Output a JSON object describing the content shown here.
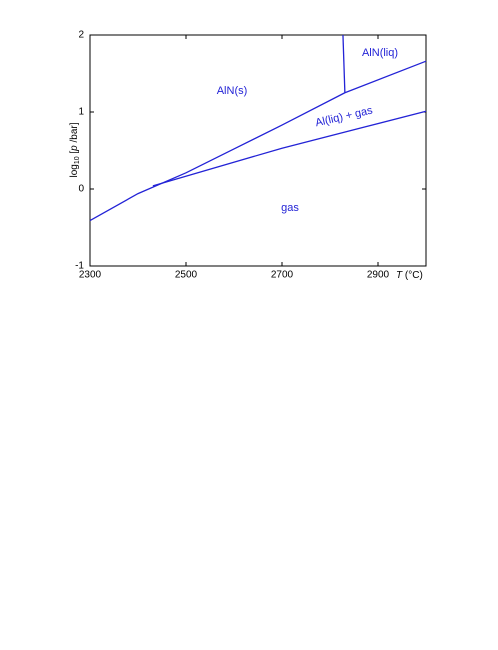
{
  "chart_data": {
    "type": "line",
    "ylabel": [
      "log",
      "10",
      " [",
      "p",
      " /bar]"
    ],
    "xlabel": [
      "T",
      " (°C)"
    ],
    "series": [
      {
        "color": "#2323d6",
        "x": [
          2300,
          2400,
          2500,
          2600,
          2700,
          2831
        ],
        "values": [
          -0.41,
          -0.06,
          0.21,
          0.52,
          0.83,
          1.25
        ]
      },
      {
        "color": "#2323d6",
        "x": [
          2831,
          3000
        ],
        "values": [
          1.25,
          1.66
        ]
      },
      {
        "color": "#2323d6",
        "x": [
          2431,
          2700,
          3000
        ],
        "values": [
          0.04,
          0.53,
          1.01
        ]
      },
      {
        "color": "#2323d6",
        "x": [
          2827,
          2831
        ],
        "values": [
          2,
          1.25
        ]
      }
    ],
    "annotations": [
      "AlN(s)",
      "AlN(liq)",
      "Al(liq) + gas",
      "gas"
    ],
    "xlim": [
      2300,
      3000
    ],
    "xticks": [
      2300,
      2500,
      2700,
      2900
    ],
    "ylim": [
      -1,
      2
    ],
    "yticks": [
      -1,
      0,
      1,
      2
    ]
  }
}
